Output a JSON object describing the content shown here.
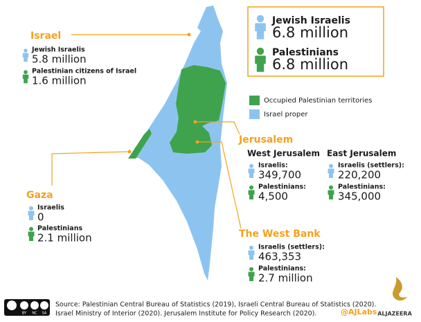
{
  "summary": [
    {
      "label": "Jewish Israelis",
      "value": "6.8 million"
    },
    {
      "label": "Palestinians",
      "value": "6.8 million"
    }
  ],
  "legend": [
    "Occupied Palestinian territories",
    "Israel proper"
  ],
  "israel": {
    "name": "Israel",
    "stats": [
      {
        "label": "Jewish Israelis",
        "value": "5.8 million"
      },
      {
        "label": "Palestinian citizens of Israel",
        "value": "1.6 million"
      }
    ]
  },
  "jerusalem": {
    "name": "Jerusalem",
    "groups": [
      {
        "name": "West Jerusalem",
        "stats": [
          {
            "label": "Israelis:",
            "value": "349,700"
          },
          {
            "label": "Palestinians:",
            "value": "4,500"
          }
        ]
      },
      {
        "name": "East Jerusalem",
        "stats": [
          {
            "label": "Israelis (settlers):",
            "value": "220,200"
          },
          {
            "label": "Palestinians:",
            "value": "345,000"
          }
        ]
      }
    ]
  },
  "gaza": {
    "name": "Gaza",
    "stats": [
      {
        "label": "Israelis",
        "value": "0"
      },
      {
        "label": "Palestinians",
        "value": "2.1 million"
      }
    ]
  },
  "west_bank": {
    "name": "The West Bank",
    "stats": [
      {
        "label": "Israelis (settlers):",
        "value": "463,353"
      },
      {
        "label": "Palestinians:",
        "value": "2.7 million"
      }
    ]
  },
  "footer": {
    "source": [
      "Source: Palestinian Central Bureau of Statistics (2019), Israeli Central Bureau of Statistics (2020).",
      "Israel Ministry of Interior (2020). Jerusalem Institute for Policy Research (2020)."
    ],
    "license": [
      "BY",
      "NC",
      "SA"
    ],
    "credit": "@AJLabs",
    "logo": "ALJAZEERA"
  }
}
